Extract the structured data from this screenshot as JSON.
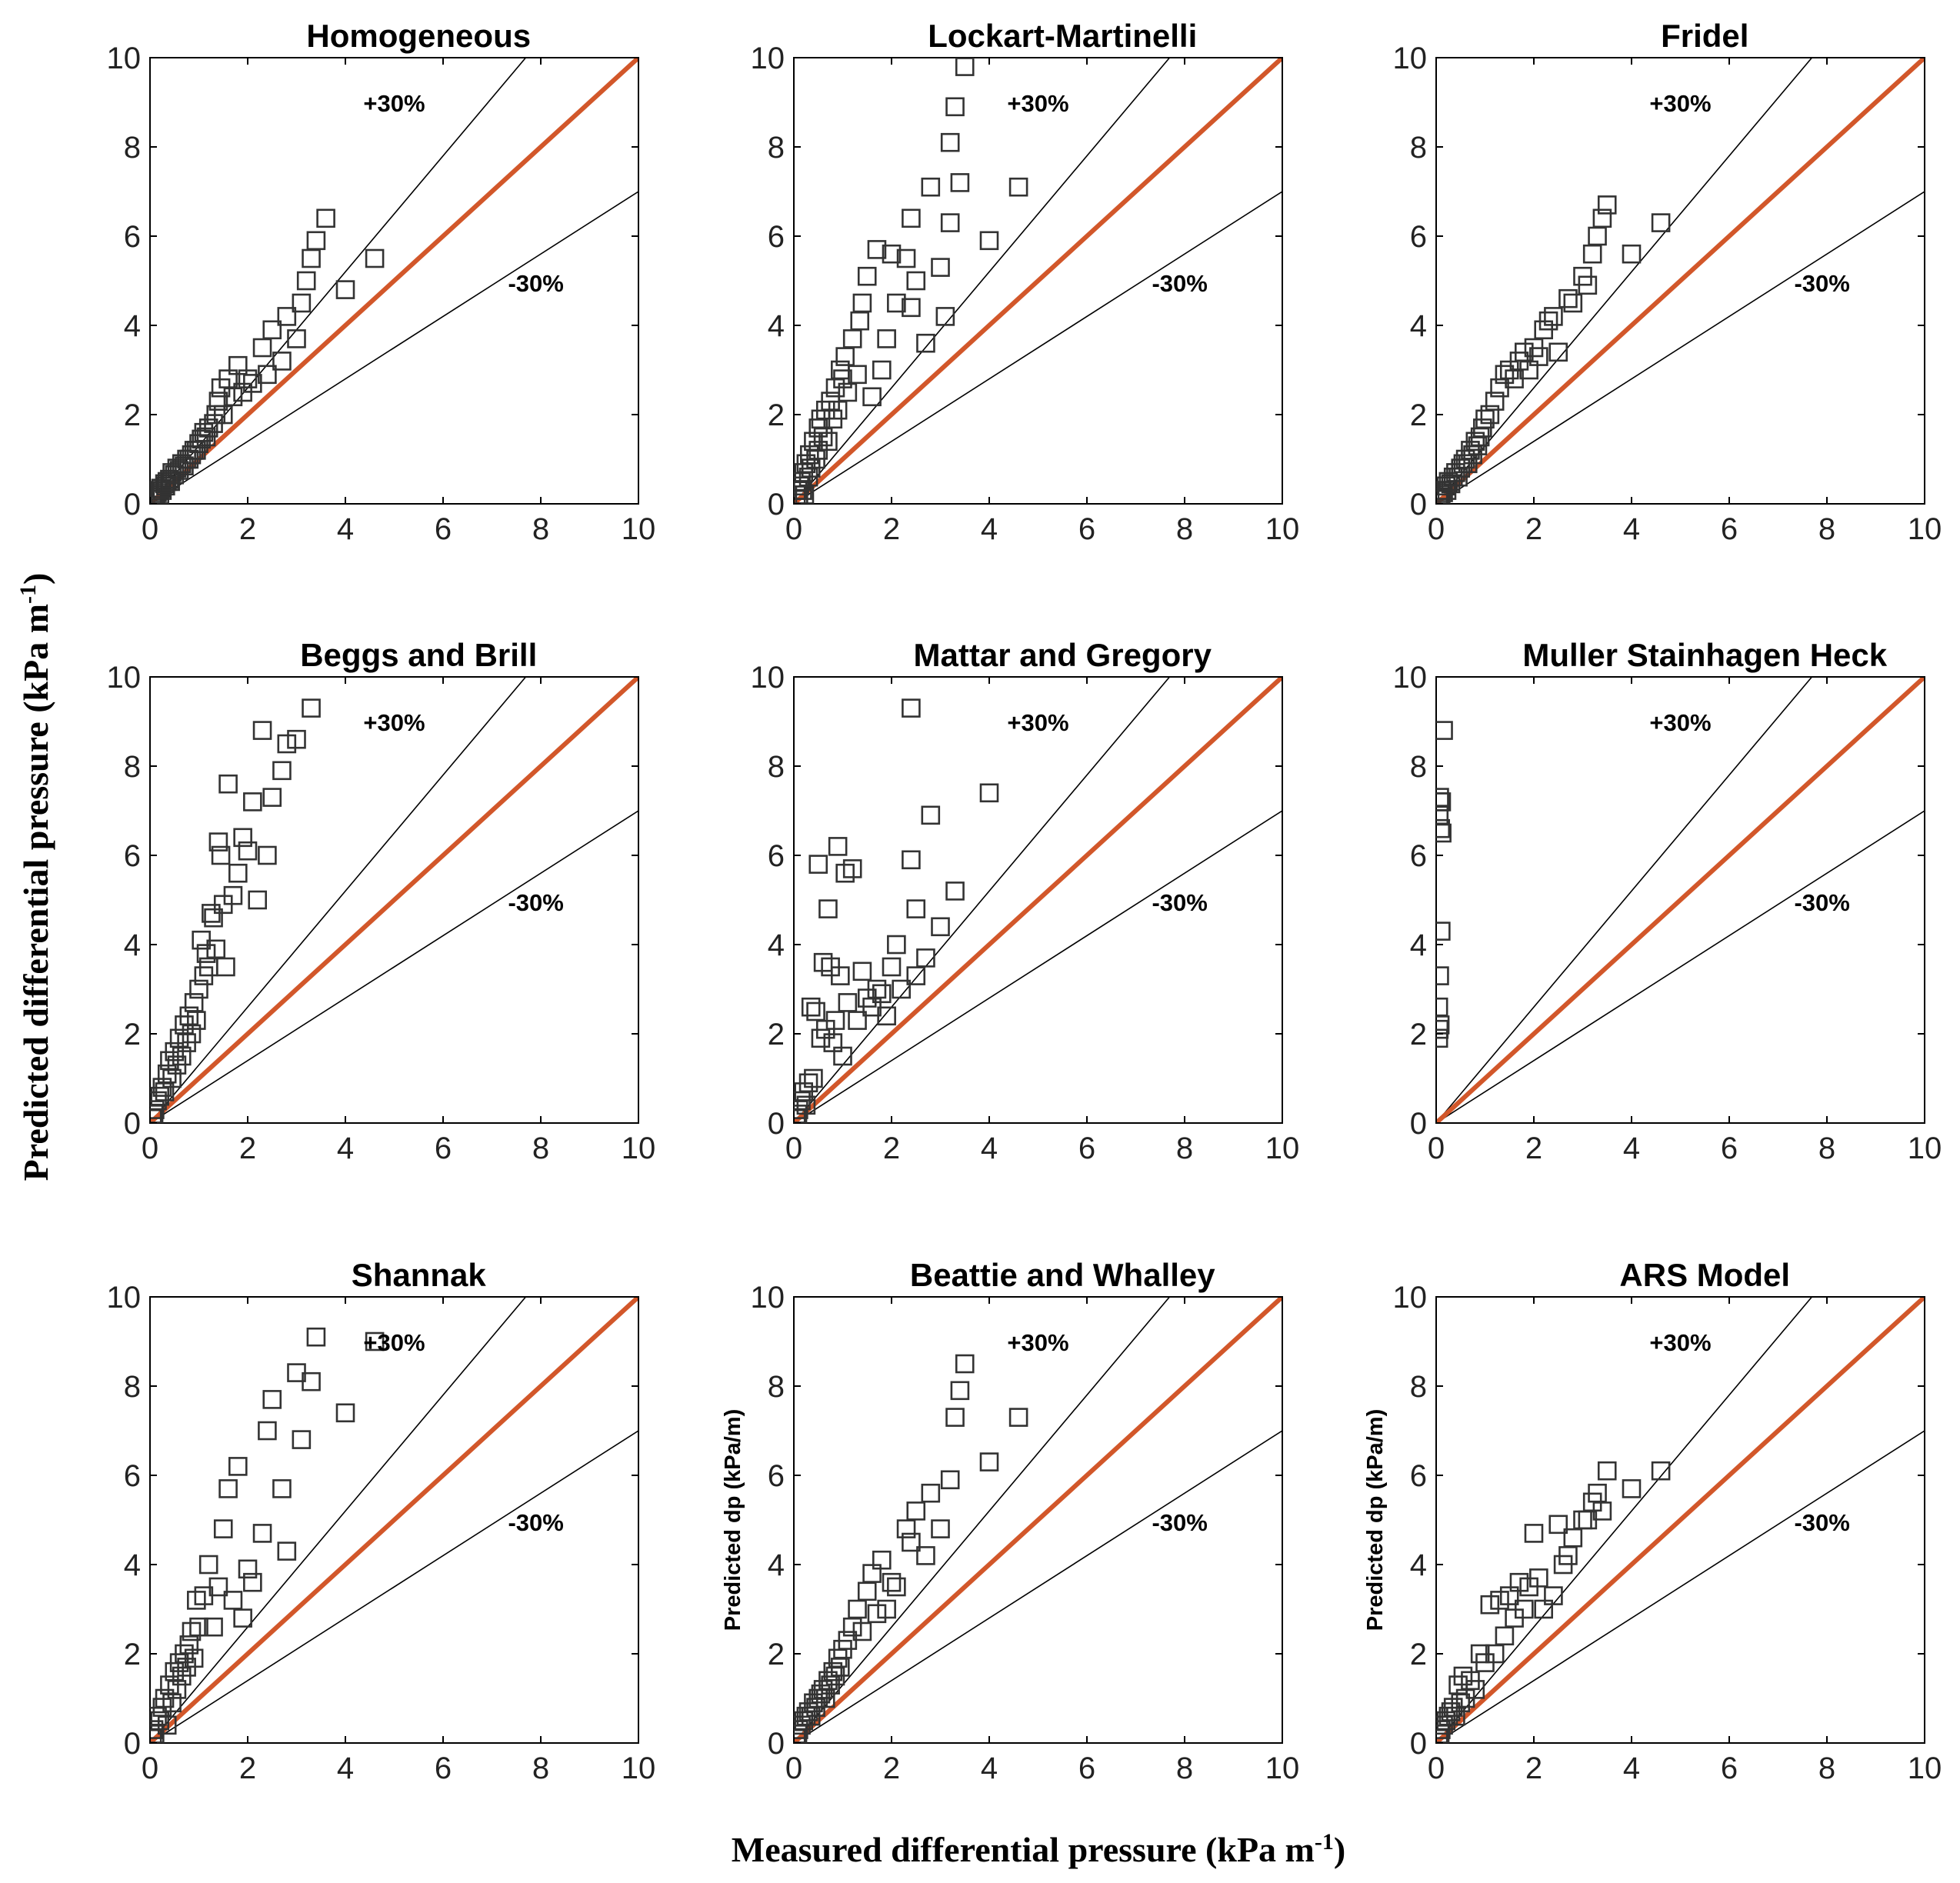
{
  "figure": {
    "y_label": "Predicted differential pressure (kPa m",
    "x_label": "Measured differential pressure (kPa m",
    "label_superscript": "-1",
    "label_close": ")"
  },
  "colors": {
    "parity_line": "#d2572a",
    "bound_line": "#000000",
    "marker": "#333333",
    "axes": "#000000"
  },
  "chart_data": [
    {
      "type": "scatter",
      "title": "Homogeneous",
      "xlim": [
        0,
        10
      ],
      "ylim": [
        0,
        10
      ],
      "xticks": [
        "0",
        "2",
        "4",
        "6",
        "8",
        "10"
      ],
      "yticks": [
        "0",
        "2",
        "4",
        "6",
        "8",
        "10"
      ],
      "upper_label": "+30%",
      "lower_label": "-30%",
      "ylabel": "",
      "x": [
        0.05,
        0.08,
        0.1,
        0.12,
        0.15,
        0.18,
        0.2,
        0.22,
        0.25,
        0.3,
        0.32,
        0.35,
        0.4,
        0.42,
        0.45,
        0.5,
        0.55,
        0.6,
        0.65,
        0.7,
        0.75,
        0.8,
        0.85,
        0.9,
        0.95,
        1.0,
        1.05,
        1.1,
        1.15,
        1.2,
        1.3,
        1.35,
        1.4,
        1.45,
        1.5,
        1.6,
        1.7,
        1.8,
        1.9,
        2.0,
        2.1,
        2.3,
        2.4,
        2.5,
        2.7,
        2.8,
        3.0,
        3.1,
        3.2,
        3.3,
        3.4,
        3.6,
        4.0,
        4.6
      ],
      "y": [
        0.1,
        0.15,
        0.2,
        0.15,
        0.25,
        0.3,
        0.2,
        0.35,
        0.3,
        0.45,
        0.4,
        0.5,
        0.55,
        0.5,
        0.7,
        0.65,
        0.8,
        0.75,
        0.9,
        0.85,
        1.0,
        1.0,
        1.1,
        1.2,
        1.2,
        1.35,
        1.45,
        1.6,
        1.5,
        1.7,
        1.8,
        2.0,
        2.3,
        2.6,
        2.0,
        2.8,
        2.4,
        3.1,
        2.5,
        2.8,
        2.7,
        3.5,
        2.9,
        3.9,
        3.2,
        4.2,
        3.7,
        4.5,
        5.0,
        5.5,
        5.9,
        6.4,
        4.8,
        5.5
      ]
    },
    {
      "type": "scatter",
      "title": "Lockart-Martinelli",
      "xlim": [
        0,
        10
      ],
      "ylim": [
        0,
        10
      ],
      "xticks": [
        "0",
        "2",
        "4",
        "6",
        "8",
        "10"
      ],
      "yticks": [
        "0",
        "2",
        "4",
        "6",
        "8",
        "10"
      ],
      "upper_label": "+30%",
      "lower_label": "-30%",
      "ylabel": "",
      "x": [
        0.05,
        0.08,
        0.1,
        0.12,
        0.15,
        0.18,
        0.2,
        0.22,
        0.25,
        0.3,
        0.32,
        0.35,
        0.4,
        0.45,
        0.5,
        0.5,
        0.55,
        0.6,
        0.65,
        0.7,
        0.75,
        0.8,
        0.85,
        0.9,
        0.95,
        1.0,
        1.05,
        1.1,
        1.2,
        1.3,
        1.35,
        1.4,
        1.5,
        1.6,
        1.7,
        1.8,
        1.9,
        2.0,
        2.1,
        2.3,
        2.4,
        2.4,
        2.5,
        2.7,
        2.8,
        3.0,
        3.1,
        3.2,
        3.2,
        3.3,
        3.4,
        3.5,
        4.0,
        4.6
      ],
      "y": [
        0.2,
        0.3,
        0.1,
        0.4,
        0.5,
        0.3,
        0.7,
        0.2,
        0.9,
        0.6,
        1.1,
        0.8,
        1.4,
        1.0,
        1.7,
        1.2,
        1.9,
        1.5,
        2.1,
        1.4,
        2.3,
        1.9,
        2.6,
        2.1,
        3.0,
        2.8,
        3.3,
        2.5,
        3.7,
        2.9,
        4.1,
        4.5,
        5.1,
        2.4,
        5.7,
        3.0,
        3.7,
        5.6,
        4.5,
        5.5,
        6.4,
        4.4,
        5.0,
        3.6,
        7.1,
        5.3,
        4.2,
        6.3,
        8.1,
        8.9,
        7.2,
        9.8,
        5.9,
        7.1
      ]
    },
    {
      "type": "scatter",
      "title": "Fridel",
      "xlim": [
        0,
        10
      ],
      "ylim": [
        0,
        10
      ],
      "xticks": [
        "0",
        "2",
        "4",
        "6",
        "8",
        "10"
      ],
      "yticks": [
        "0",
        "2",
        "4",
        "6",
        "8",
        "10"
      ],
      "upper_label": "+30%",
      "lower_label": "-30%",
      "ylabel": "",
      "x": [
        0.05,
        0.08,
        0.1,
        0.12,
        0.15,
        0.2,
        0.22,
        0.25,
        0.3,
        0.35,
        0.4,
        0.45,
        0.5,
        0.55,
        0.6,
        0.65,
        0.7,
        0.75,
        0.8,
        0.85,
        0.9,
        0.95,
        1.0,
        1.1,
        1.2,
        1.3,
        1.4,
        1.5,
        1.6,
        1.7,
        1.8,
        1.9,
        2.0,
        2.1,
        2.2,
        2.3,
        2.4,
        2.5,
        2.7,
        2.8,
        3.0,
        3.1,
        3.2,
        3.3,
        3.4,
        3.5,
        4.0,
        4.6
      ],
      "y": [
        0.1,
        0.2,
        0.15,
        0.3,
        0.25,
        0.4,
        0.3,
        0.5,
        0.45,
        0.6,
        0.7,
        0.6,
        0.8,
        0.9,
        1.0,
        0.9,
        1.2,
        1.1,
        1.4,
        1.3,
        1.5,
        1.7,
        1.9,
        2.0,
        2.3,
        2.6,
        2.9,
        3.0,
        2.8,
        3.2,
        3.4,
        3.0,
        3.5,
        3.3,
        3.9,
        4.1,
        4.2,
        3.4,
        4.6,
        4.5,
        5.1,
        4.9,
        5.6,
        6.0,
        6.4,
        6.7,
        5.6,
        6.3
      ]
    },
    {
      "type": "scatter",
      "title": "Beggs and Brill",
      "xlim": [
        0,
        10
      ],
      "ylim": [
        0,
        10
      ],
      "xticks": [
        "0",
        "2",
        "4",
        "6",
        "8",
        "10"
      ],
      "yticks": [
        "0",
        "2",
        "4",
        "6",
        "8",
        "10"
      ],
      "upper_label": "+30%",
      "lower_label": "-30%",
      "ylabel": "",
      "x": [
        0.05,
        0.08,
        0.1,
        0.15,
        0.2,
        0.25,
        0.3,
        0.35,
        0.4,
        0.45,
        0.5,
        0.55,
        0.6,
        0.65,
        0.7,
        0.75,
        0.8,
        0.85,
        0.9,
        0.95,
        1.0,
        1.05,
        1.1,
        1.15,
        1.2,
        1.25,
        1.3,
        1.35,
        1.4,
        1.45,
        1.5,
        1.55,
        1.6,
        1.7,
        1.8,
        1.9,
        2.0,
        2.1,
        2.2,
        2.3,
        2.4,
        2.5,
        2.7,
        2.8,
        3.0,
        3.3
      ],
      "y": [
        0.1,
        0.2,
        0.3,
        0.5,
        0.6,
        0.8,
        0.7,
        1.1,
        1.4,
        1.0,
        1.6,
        1.3,
        1.9,
        1.5,
        2.2,
        1.8,
        2.4,
        2.0,
        2.7,
        2.3,
        3.0,
        4.1,
        3.3,
        3.8,
        3.5,
        4.7,
        4.6,
        3.9,
        6.3,
        6.0,
        4.9,
        3.5,
        7.6,
        5.1,
        5.6,
        6.4,
        6.1,
        7.2,
        5.0,
        8.8,
        6.0,
        7.3,
        7.9,
        8.5,
        8.6,
        9.3
      ]
    },
    {
      "type": "scatter",
      "title": "Mattar and Gregory",
      "xlim": [
        0,
        10
      ],
      "ylim": [
        0,
        10
      ],
      "xticks": [
        "0",
        "2",
        "4",
        "6",
        "8",
        "10"
      ],
      "yticks": [
        "0",
        "2",
        "4",
        "6",
        "8",
        "10"
      ],
      "upper_label": "+30%",
      "lower_label": "-30%",
      "ylabel": "",
      "x": [
        0.05,
        0.08,
        0.1,
        0.15,
        0.2,
        0.25,
        0.3,
        0.35,
        0.4,
        0.45,
        0.5,
        0.55,
        0.6,
        0.65,
        0.7,
        0.75,
        0.8,
        0.85,
        0.9,
        0.95,
        1.0,
        1.05,
        1.1,
        1.2,
        1.3,
        1.4,
        1.5,
        1.6,
        1.7,
        1.8,
        1.9,
        2.0,
        2.1,
        2.2,
        2.4,
        2.4,
        2.5,
        2.5,
        2.7,
        2.8,
        3.0,
        3.3,
        4.0
      ],
      "y": [
        0.1,
        0.2,
        0.3,
        0.5,
        0.7,
        0.4,
        0.9,
        2.6,
        1.0,
        2.5,
        5.8,
        1.9,
        3.6,
        2.1,
        4.8,
        3.5,
        1.8,
        2.3,
        6.2,
        3.3,
        1.5,
        5.6,
        2.7,
        5.7,
        2.3,
        3.4,
        2.8,
        2.6,
        3.0,
        2.9,
        2.4,
        3.5,
        4.0,
        3.0,
        9.3,
        5.9,
        4.8,
        3.3,
        3.7,
        6.9,
        4.4,
        5.2,
        7.4
      ]
    },
    {
      "type": "scatter",
      "title": "Muller Stainhagen Heck",
      "xlim": [
        0,
        10
      ],
      "ylim": [
        0,
        10
      ],
      "xticks": [
        "0",
        "2",
        "4",
        "6",
        "8",
        "10"
      ],
      "yticks": [
        "0",
        "2",
        "4",
        "6",
        "8",
        "10"
      ],
      "upper_label": "+30%",
      "lower_label": "-30%",
      "ylabel": "",
      "x": [
        0.05,
        0.06,
        0.08,
        0.05,
        0.07,
        0.1,
        0.12,
        0.09,
        0.06,
        0.08,
        0.07,
        0.15,
        0.11
      ],
      "y": [
        1.9,
        2.1,
        2.2,
        2.6,
        3.3,
        4.3,
        6.5,
        6.6,
        6.9,
        7.2,
        7.3,
        8.8,
        7.2
      ]
    },
    {
      "type": "scatter",
      "title": "Shannak",
      "xlim": [
        0,
        10
      ],
      "ylim": [
        0,
        10
      ],
      "xticks": [
        "0",
        "2",
        "4",
        "6",
        "8",
        "10"
      ],
      "yticks": [
        "0",
        "2",
        "4",
        "6",
        "8",
        "10"
      ],
      "upper_label": "+30%",
      "lower_label": "-30%",
      "ylabel": "",
      "x": [
        0.05,
        0.08,
        0.1,
        0.15,
        0.2,
        0.25,
        0.3,
        0.35,
        0.4,
        0.45,
        0.5,
        0.55,
        0.6,
        0.65,
        0.7,
        0.75,
        0.8,
        0.85,
        0.9,
        0.95,
        1.0,
        1.1,
        1.2,
        1.3,
        1.4,
        1.5,
        1.6,
        1.7,
        1.8,
        1.9,
        2.0,
        2.1,
        2.3,
        2.4,
        2.5,
        2.7,
        2.8,
        3.0,
        3.1,
        3.3,
        3.4,
        4.0,
        4.6
      ],
      "y": [
        0.1,
        0.3,
        0.2,
        0.6,
        0.5,
        0.8,
        1.0,
        0.4,
        1.3,
        0.9,
        1.6,
        1.2,
        1.8,
        1.5,
        2.0,
        1.7,
        2.2,
        2.5,
        1.9,
        3.2,
        2.6,
        3.3,
        4.0,
        2.6,
        3.5,
        4.8,
        5.7,
        3.2,
        6.2,
        2.8,
        3.9,
        3.6,
        4.7,
        7.0,
        7.7,
        5.7,
        4.3,
        8.3,
        6.8,
        8.1,
        9.1,
        7.4,
        9.0
      ]
    },
    {
      "type": "scatter",
      "title": "Beattie and Whalley",
      "xlim": [
        0,
        10
      ],
      "ylim": [
        0,
        10
      ],
      "xticks": [
        "0",
        "2",
        "4",
        "6",
        "8",
        "10"
      ],
      "yticks": [
        "0",
        "2",
        "4",
        "6",
        "8",
        "10"
      ],
      "upper_label": "+30%",
      "lower_label": "-30%",
      "ylabel": "Predicted dp (kPa/m)",
      "x": [
        0.05,
        0.08,
        0.1,
        0.15,
        0.2,
        0.25,
        0.3,
        0.35,
        0.4,
        0.45,
        0.5,
        0.55,
        0.6,
        0.65,
        0.7,
        0.75,
        0.8,
        0.85,
        0.9,
        0.95,
        1.0,
        1.1,
        1.2,
        1.3,
        1.4,
        1.5,
        1.6,
        1.7,
        1.8,
        1.9,
        2.0,
        2.1,
        2.3,
        2.4,
        2.5,
        2.7,
        2.8,
        3.0,
        3.2,
        3.3,
        3.4,
        3.5,
        4.0,
        4.6
      ],
      "y": [
        0.1,
        0.2,
        0.3,
        0.4,
        0.5,
        0.6,
        0.7,
        0.6,
        0.9,
        0.8,
        1.0,
        1.1,
        1.2,
        1.0,
        1.4,
        1.3,
        1.6,
        1.5,
        1.9,
        1.7,
        2.1,
        2.3,
        2.6,
        3.0,
        2.5,
        3.4,
        3.8,
        2.9,
        4.1,
        3.0,
        3.6,
        3.5,
        4.8,
        4.5,
        5.2,
        4.2,
        5.6,
        4.8,
        5.9,
        7.3,
        7.9,
        8.5,
        6.3,
        7.3
      ]
    },
    {
      "type": "scatter",
      "title": "ARS Model",
      "xlim": [
        0,
        10
      ],
      "ylim": [
        0,
        10
      ],
      "xticks": [
        "0",
        "2",
        "4",
        "6",
        "8",
        "10"
      ],
      "yticks": [
        "0",
        "2",
        "4",
        "6",
        "8",
        "10"
      ],
      "upper_label": "+30%",
      "lower_label": "-30%",
      "ylabel": "Predicted dp (kPa/m)",
      "x": [
        0.05,
        0.08,
        0.1,
        0.15,
        0.2,
        0.25,
        0.3,
        0.35,
        0.4,
        0.45,
        0.5,
        0.55,
        0.6,
        0.7,
        0.8,
        0.9,
        1.0,
        1.1,
        1.2,
        1.3,
        1.4,
        1.5,
        1.6,
        1.7,
        1.8,
        1.9,
        2.0,
        2.1,
        2.2,
        2.4,
        2.5,
        2.6,
        2.7,
        2.8,
        3.0,
        3.1,
        3.2,
        3.3,
        3.4,
        3.5,
        4.0,
        4.6
      ],
      "y": [
        0.1,
        0.2,
        0.3,
        0.4,
        0.5,
        0.6,
        0.7,
        0.8,
        0.6,
        1.3,
        0.9,
        1.5,
        1.0,
        1.4,
        1.2,
        2.0,
        1.8,
        3.1,
        2.0,
        3.2,
        2.4,
        3.3,
        2.8,
        3.6,
        3.0,
        3.5,
        4.7,
        3.7,
        3.0,
        3.3,
        4.9,
        4.0,
        4.2,
        4.6,
        5.0,
        5.0,
        5.4,
        5.6,
        5.2,
        6.1,
        5.7,
        6.1
      ]
    }
  ]
}
